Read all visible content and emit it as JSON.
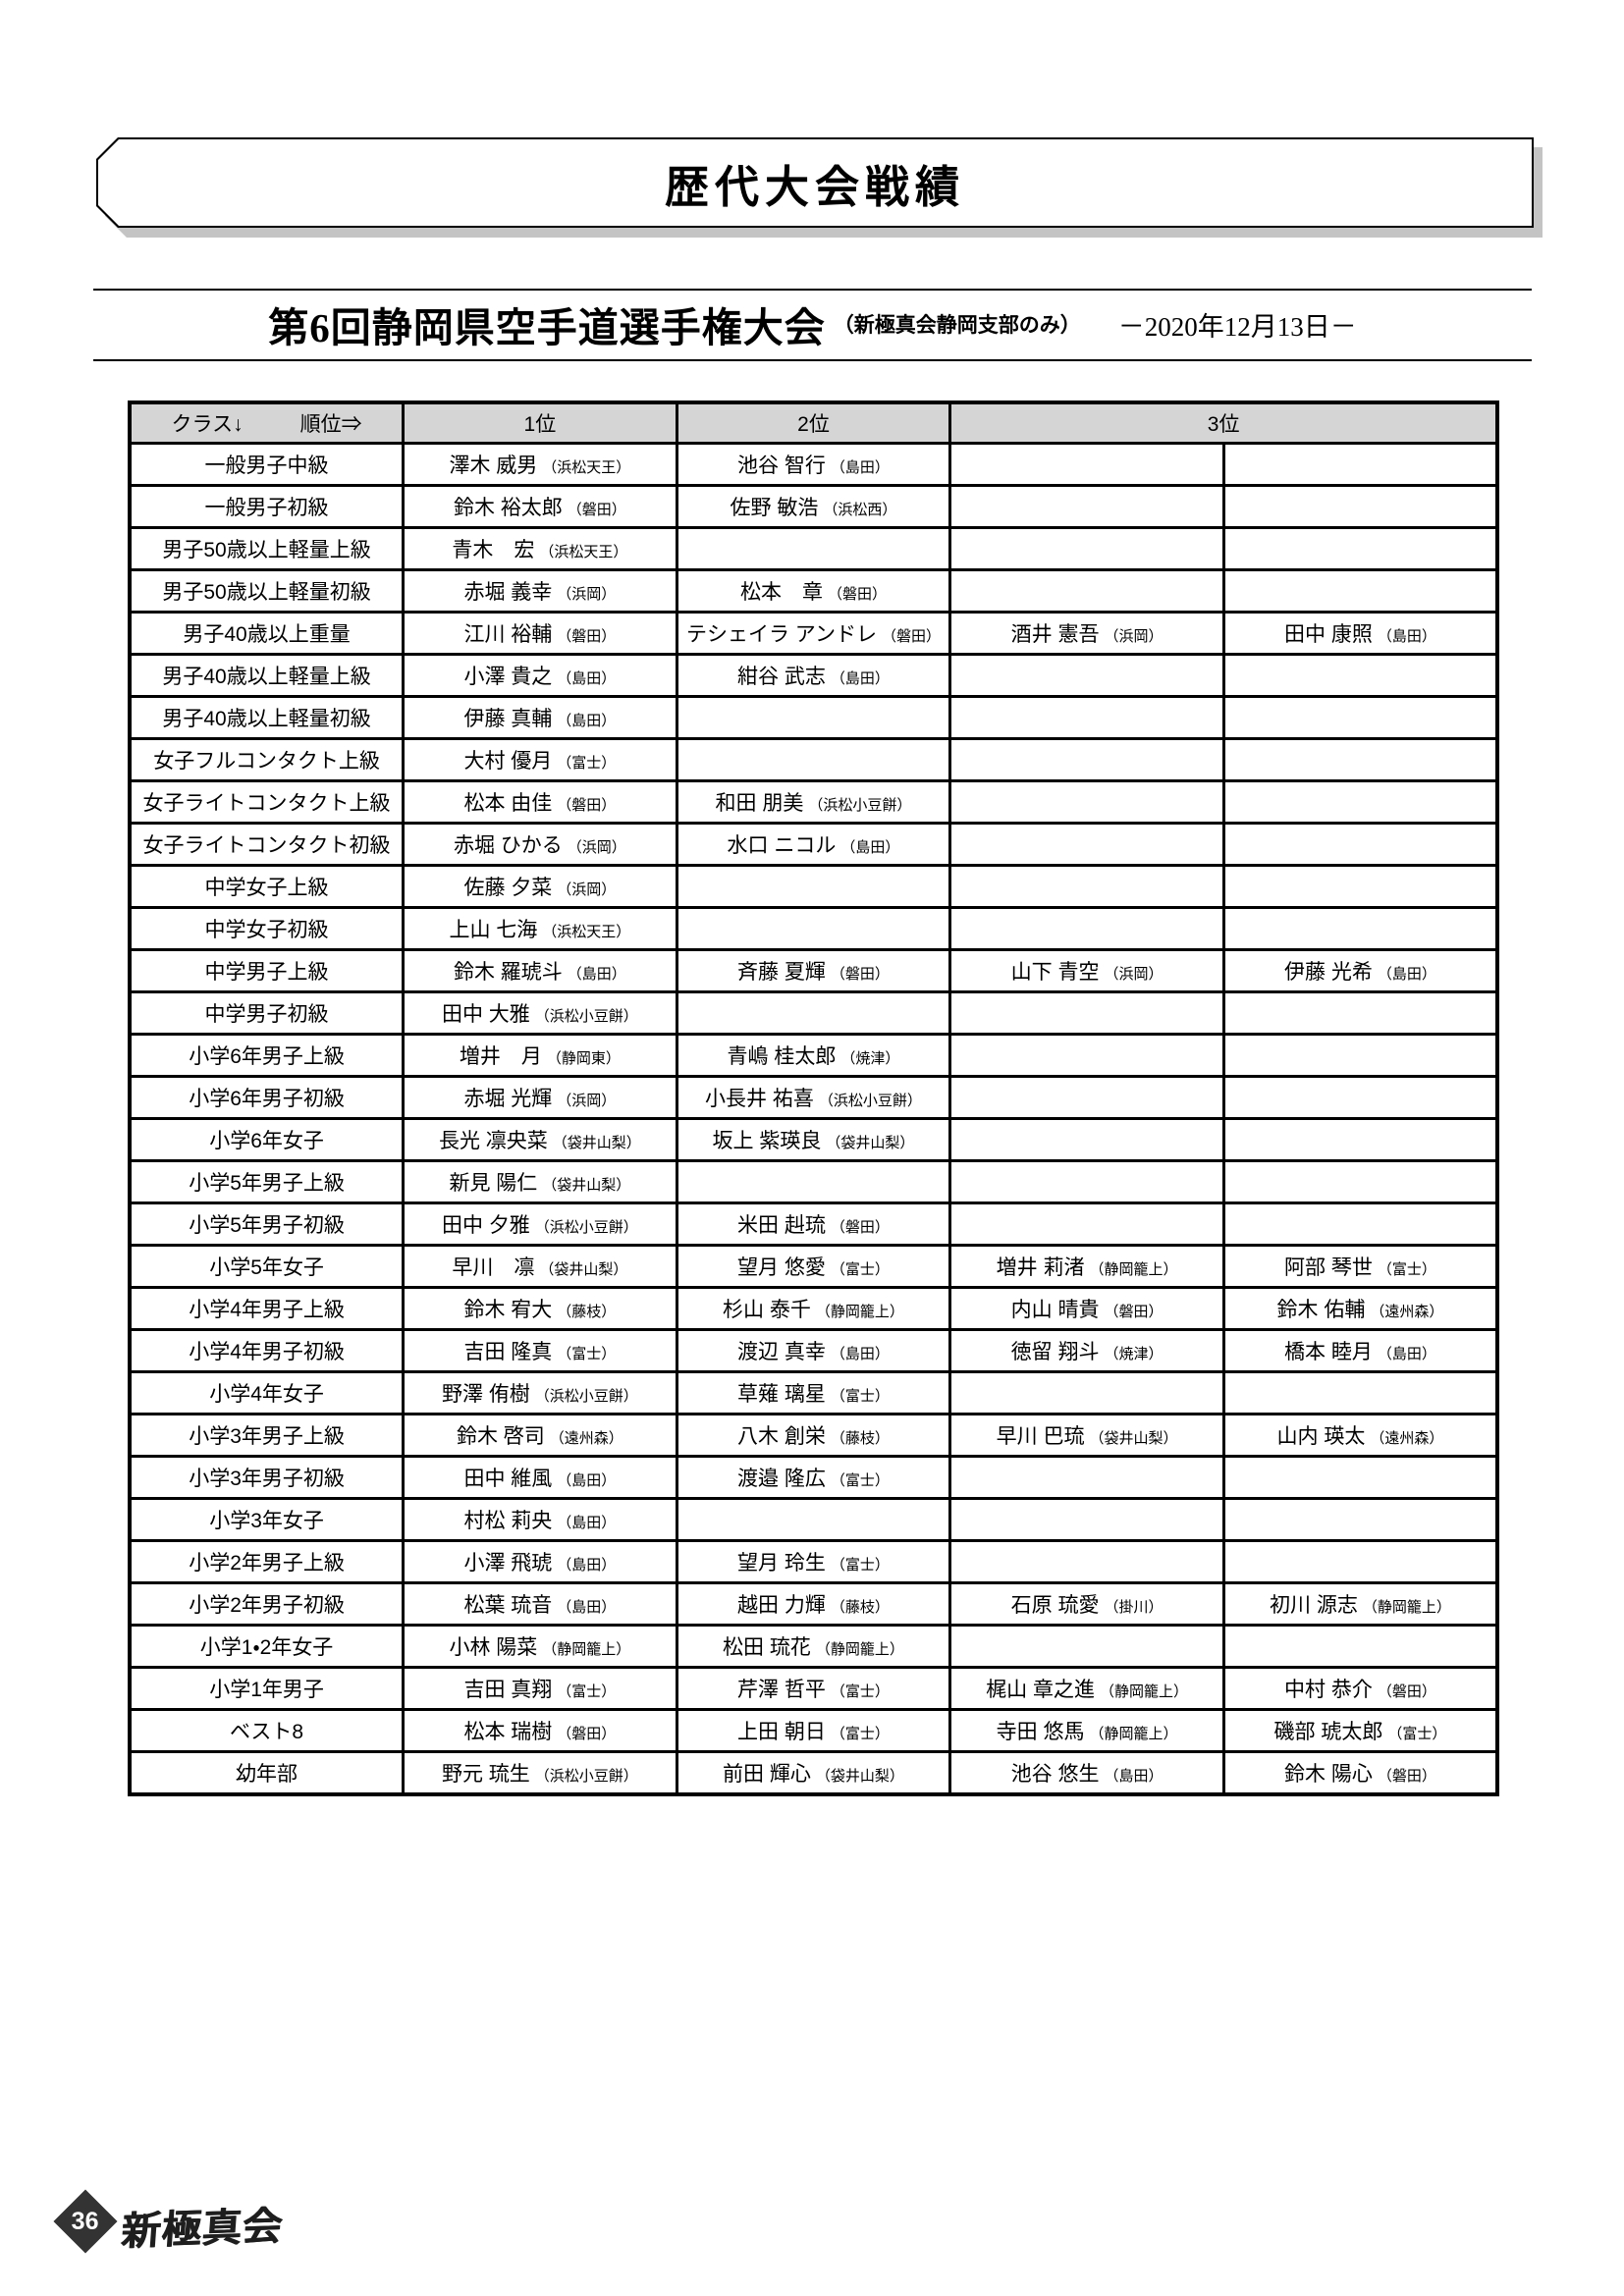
{
  "page": {
    "banner_title": "歴代大会戦績",
    "page_number": "36",
    "footer_logo": "新極真会"
  },
  "event": {
    "title": "第6回静岡県空手道選手権大会",
    "subtitle": "（新極真会静岡支部のみ）",
    "date": "－2020年12月13日－"
  },
  "colors": {
    "header_bg": "#d5d5d5",
    "border": "#000000",
    "banner_shadow": "#c4c4c4",
    "page_badge": "#333333"
  },
  "table": {
    "header": {
      "class_label": "クラス↓",
      "rank_label": "順位⇒",
      "rank1": "1位",
      "rank2": "2位",
      "rank3": "3位"
    },
    "rows": [
      {
        "class": "一般男子中級",
        "first": {
          "name": "澤木 威男",
          "dojo": "浜松天王"
        },
        "second": {
          "name": "池谷 智行",
          "dojo": "島田"
        },
        "third_a": null,
        "third_b": null
      },
      {
        "class": "一般男子初級",
        "first": {
          "name": "鈴木 裕太郎",
          "dojo": "磐田"
        },
        "second": {
          "name": "佐野 敏浩",
          "dojo": "浜松西"
        },
        "third_a": null,
        "third_b": null
      },
      {
        "class": "男子50歳以上軽量上級",
        "first": {
          "name": "青木　宏",
          "dojo": "浜松天王"
        },
        "second": null,
        "third_a": null,
        "third_b": null
      },
      {
        "class": "男子50歳以上軽量初級",
        "first": {
          "name": "赤堀 義幸",
          "dojo": "浜岡"
        },
        "second": {
          "name": "松本　章",
          "dojo": "磐田"
        },
        "third_a": null,
        "third_b": null
      },
      {
        "class": "男子40歳以上重量",
        "first": {
          "name": "江川 裕輔",
          "dojo": "磐田"
        },
        "second": {
          "name": "テシェイラ アンドレ",
          "dojo": "磐田"
        },
        "third_a": {
          "name": "酒井 憲吾",
          "dojo": "浜岡"
        },
        "third_b": {
          "name": "田中 康照",
          "dojo": "島田"
        }
      },
      {
        "class": "男子40歳以上軽量上級",
        "first": {
          "name": "小澤 貴之",
          "dojo": "島田"
        },
        "second": {
          "name": "紺谷 武志",
          "dojo": "島田"
        },
        "third_a": null,
        "third_b": null
      },
      {
        "class": "男子40歳以上軽量初級",
        "first": {
          "name": "伊藤 真輔",
          "dojo": "島田"
        },
        "second": null,
        "third_a": null,
        "third_b": null
      },
      {
        "class": "女子フルコンタクト上級",
        "first": {
          "name": "大村 優月",
          "dojo": "富士"
        },
        "second": null,
        "third_a": null,
        "third_b": null
      },
      {
        "class": "女子ライトコンタクト上級",
        "first": {
          "name": "松本 由佳",
          "dojo": "磐田"
        },
        "second": {
          "name": "和田 朋美",
          "dojo": "浜松小豆餅"
        },
        "third_a": null,
        "third_b": null
      },
      {
        "class": "女子ライトコンタクト初級",
        "first": {
          "name": "赤堀 ひかる",
          "dojo": "浜岡"
        },
        "second": {
          "name": "水口 ニコル",
          "dojo": "島田"
        },
        "third_a": null,
        "third_b": null
      },
      {
        "class": "中学女子上級",
        "first": {
          "name": "佐藤 夕菜",
          "dojo": "浜岡"
        },
        "second": null,
        "third_a": null,
        "third_b": null
      },
      {
        "class": "中学女子初級",
        "first": {
          "name": "上山 七海",
          "dojo": "浜松天王"
        },
        "second": null,
        "third_a": null,
        "third_b": null
      },
      {
        "class": "中学男子上級",
        "first": {
          "name": "鈴木 羅琥斗",
          "dojo": "島田"
        },
        "second": {
          "name": "斉藤 夏輝",
          "dojo": "磐田"
        },
        "third_a": {
          "name": "山下 青空",
          "dojo": "浜岡"
        },
        "third_b": {
          "name": "伊藤 光希",
          "dojo": "島田"
        }
      },
      {
        "class": "中学男子初級",
        "first": {
          "name": "田中 大雅",
          "dojo": "浜松小豆餅"
        },
        "second": null,
        "third_a": null,
        "third_b": null
      },
      {
        "class": "小学6年男子上級",
        "first": {
          "name": "増井　月",
          "dojo": "静岡東"
        },
        "second": {
          "name": "青嶋 桂太郎",
          "dojo": "焼津"
        },
        "third_a": null,
        "third_b": null
      },
      {
        "class": "小学6年男子初級",
        "first": {
          "name": "赤堀 光輝",
          "dojo": "浜岡"
        },
        "second": {
          "name": "小長井 祐喜",
          "dojo": "浜松小豆餅"
        },
        "third_a": null,
        "third_b": null
      },
      {
        "class": "小学6年女子",
        "first": {
          "name": "長光 凛央菜",
          "dojo": "袋井山梨"
        },
        "second": {
          "name": "坂上 紫瑛良",
          "dojo": "袋井山梨"
        },
        "third_a": null,
        "third_b": null
      },
      {
        "class": "小学5年男子上級",
        "first": {
          "name": "新見 陽仁",
          "dojo": "袋井山梨"
        },
        "second": null,
        "third_a": null,
        "third_b": null
      },
      {
        "class": "小学5年男子初級",
        "first": {
          "name": "田中 夕雅",
          "dojo": "浜松小豆餅"
        },
        "second": {
          "name": "米田 赳琉",
          "dojo": "磐田"
        },
        "third_a": null,
        "third_b": null
      },
      {
        "class": "小学5年女子",
        "first": {
          "name": "早川　凛",
          "dojo": "袋井山梨"
        },
        "second": {
          "name": "望月 悠愛",
          "dojo": "富士"
        },
        "third_a": {
          "name": "増井 莉渚",
          "dojo": "静岡籠上"
        },
        "third_b": {
          "name": "阿部 琴世",
          "dojo": "富士"
        }
      },
      {
        "class": "小学4年男子上級",
        "first": {
          "name": "鈴木 宥大",
          "dojo": "藤枝"
        },
        "second": {
          "name": "杉山 泰千",
          "dojo": "静岡籠上"
        },
        "third_a": {
          "name": "内山 晴貴",
          "dojo": "磐田"
        },
        "third_b": {
          "name": "鈴木 佑輔",
          "dojo": "遠州森"
        }
      },
      {
        "class": "小学4年男子初級",
        "first": {
          "name": "吉田 隆真",
          "dojo": "富士"
        },
        "second": {
          "name": "渡辺 真幸",
          "dojo": "島田"
        },
        "third_a": {
          "name": "徳留 翔斗",
          "dojo": "焼津"
        },
        "third_b": {
          "name": "橋本 睦月",
          "dojo": "島田"
        }
      },
      {
        "class": "小学4年女子",
        "first": {
          "name": "野澤 侑樹",
          "dojo": "浜松小豆餅"
        },
        "second": {
          "name": "草薙 璃星",
          "dojo": "富士"
        },
        "third_a": null,
        "third_b": null
      },
      {
        "class": "小学3年男子上級",
        "first": {
          "name": "鈴木 啓司",
          "dojo": "遠州森"
        },
        "second": {
          "name": "八木 創栄",
          "dojo": "藤枝"
        },
        "third_a": {
          "name": "早川 巴琉",
          "dojo": "袋井山梨"
        },
        "third_b": {
          "name": "山内 瑛太",
          "dojo": "遠州森"
        }
      },
      {
        "class": "小学3年男子初級",
        "first": {
          "name": "田中 維風",
          "dojo": "島田"
        },
        "second": {
          "name": "渡邉 隆広",
          "dojo": "富士"
        },
        "third_a": null,
        "third_b": null
      },
      {
        "class": "小学3年女子",
        "first": {
          "name": "村松 莉央",
          "dojo": "島田"
        },
        "second": null,
        "third_a": null,
        "third_b": null
      },
      {
        "class": "小学2年男子上級",
        "first": {
          "name": "小澤 飛琥",
          "dojo": "島田"
        },
        "second": {
          "name": "望月 玲生",
          "dojo": "富士"
        },
        "third_a": null,
        "third_b": null
      },
      {
        "class": "小学2年男子初級",
        "first": {
          "name": "松葉 琉音",
          "dojo": "島田"
        },
        "second": {
          "name": "越田 力輝",
          "dojo": "藤枝"
        },
        "third_a": {
          "name": "石原 琉愛",
          "dojo": "掛川"
        },
        "third_b": {
          "name": "初川 源志",
          "dojo": "静岡籠上"
        }
      },
      {
        "class": "小学1・2年女子",
        "first": {
          "name": "小林 陽菜",
          "dojo": "静岡籠上"
        },
        "second": {
          "name": "松田 琉花",
          "dojo": "静岡籠上"
        },
        "third_a": null,
        "third_b": null
      },
      {
        "class": "小学1年男子",
        "first": {
          "name": "吉田 真翔",
          "dojo": "富士"
        },
        "second": {
          "name": "芹澤 哲平",
          "dojo": "富士"
        },
        "third_a": {
          "name": "梶山 章之進",
          "dojo": "静岡籠上"
        },
        "third_b": {
          "name": "中村 恭介",
          "dojo": "磐田"
        }
      },
      {
        "class": "ベスト8",
        "first": {
          "name": "松本 瑞樹",
          "dojo": "磐田"
        },
        "second": {
          "name": "上田 朝日",
          "dojo": "富士"
        },
        "third_a": {
          "name": "寺田 悠馬",
          "dojo": "静岡籠上"
        },
        "third_b": {
          "name": "磯部 琥太郎",
          "dojo": "富士"
        }
      },
      {
        "class": "幼年部",
        "first": {
          "name": "野元 琉生",
          "dojo": "浜松小豆餅"
        },
        "second": {
          "name": "前田 輝心",
          "dojo": "袋井山梨"
        },
        "third_a": {
          "name": "池谷 悠生",
          "dojo": "島田"
        },
        "third_b": {
          "name": "鈴木 陽心",
          "dojo": "磐田"
        }
      }
    ]
  }
}
